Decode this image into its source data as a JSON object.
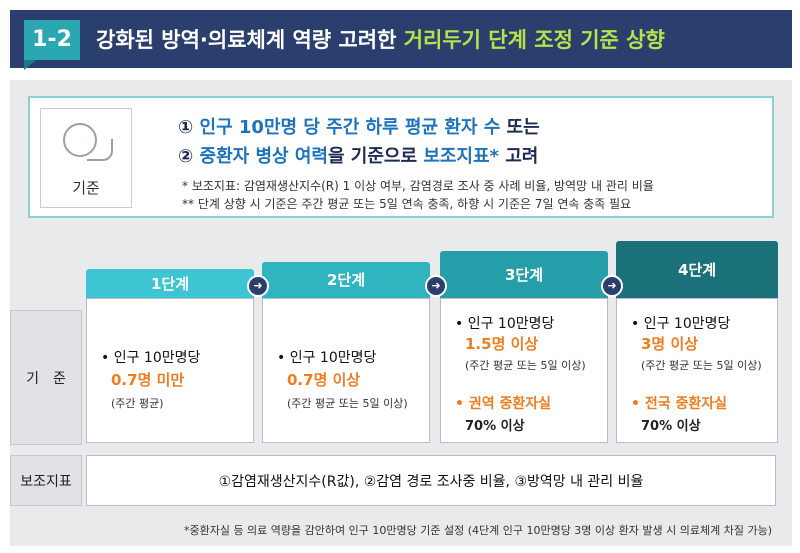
{
  "header": {
    "badge": "1-2",
    "title_prefix": "강화된 방역·의료체계 역량 고려한 ",
    "title_highlight": "거리두기 단계 조정 기준 상향"
  },
  "criteria": {
    "icon_label": "기준",
    "line1_prefix": "① ",
    "line1_highlight": "인구 10만명 당 주간 하루 평균 환자 수",
    "line1_suffix": " 또는",
    "line2_prefix": "② ",
    "line2_highlight1": "중환자 병상 여력",
    "line2_middle": "을 기준으로 ",
    "line2_highlight2": "보조지표*",
    "line2_suffix": " 고려",
    "note1": "* 보조지표: 감염재생산지수(R) 1 이상 여부, 감염경로 조사 중 사례 비율, 방역망 내 관리 비율",
    "note2": "** 단계 상향 시 기준은 주간 평균 또는 5일 연속 충족, 하향 시 기준은 7일 연속 충족 필요"
  },
  "rows": {
    "criteria_label": "기　준",
    "aux_label": "보조지표"
  },
  "stages": [
    {
      "name": "1단계",
      "color": "#3ec5d3",
      "bullet": "• 인구 10만명당",
      "value": "0.7명 미만",
      "sub": "(주간 평균)"
    },
    {
      "name": "2단계",
      "color": "#2fb4c0",
      "bullet": "• 인구 10만명당",
      "value": "0.7명 이상",
      "sub": "(주간 평균 또는 5일 이상)"
    },
    {
      "name": "3단계",
      "color": "#269ea9",
      "bullet": "• 인구 10만명당",
      "value": "1.5명 이상",
      "sub": "(주간 평균 또는 5일 이상)",
      "extra_label": "• 권역 중환자실",
      "extra_value": "70% 이상"
    },
    {
      "name": "4단계",
      "color": "#1b7179",
      "bullet": "• 인구 10만명당",
      "value": "3명 이상",
      "sub": "(주간 평균 또는 5일 이상)",
      "extra_label": "• 전국 중환자실",
      "extra_value": "70% 이상"
    }
  ],
  "aux_text": "①감염재생산지수(R값), ②감염 경로 조사중 비율, ③방역망 내 관리 비율",
  "footnote": "*중환자실 등 의료 역량을 감안하여 인구 10만명당 기준 설정 (4단계 인구 10만명당 3명 이상 환자 발생 시 의료체계 차질 가능)",
  "arrow_icon": "arrow-right-icon"
}
